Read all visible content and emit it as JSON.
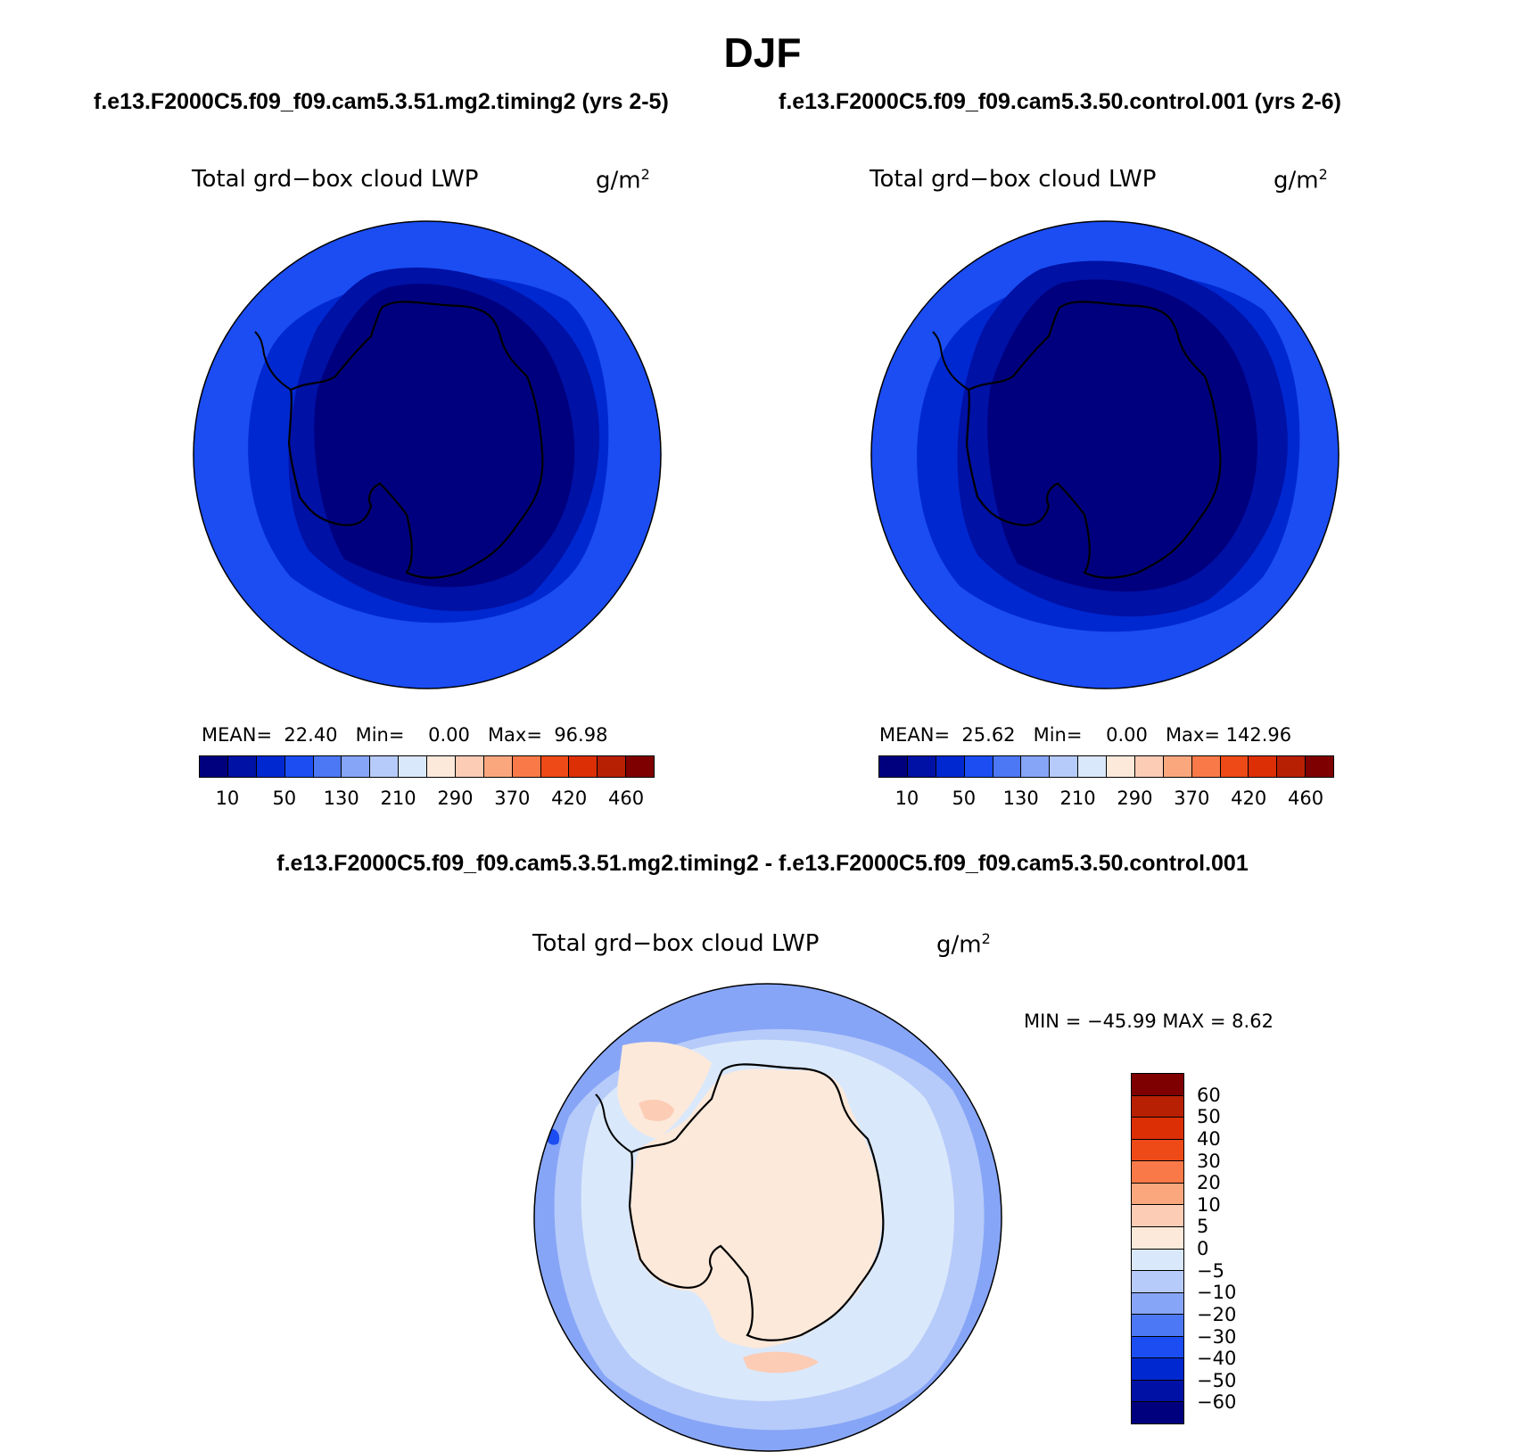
{
  "title": "DJF",
  "panels": {
    "left": {
      "case": "f.e13.F2000C5.f09_f09.cam5.3.51.mg2.timing2 (yrs 2-5)",
      "variable": "Total grd−box cloud LWP",
      "units_base": "g/m",
      "units_exp": "2",
      "mean_label": "MEAN=",
      "mean_value": "22.40",
      "min_label": "Min=",
      "min_value": "0.00",
      "max_label": "Max=",
      "max_value": "96.98"
    },
    "right": {
      "case": "f.e13.F2000C5.f09_f09.cam5.3.50.control.001 (yrs 2-6)",
      "variable": "Total grd−box cloud LWP",
      "units_base": "g/m",
      "units_exp": "2",
      "mean_label": "MEAN=",
      "mean_value": "25.62",
      "min_label": "Min=",
      "min_value": "0.00",
      "max_label": "Max=",
      "max_value": "142.96"
    },
    "diff": {
      "case": "f.e13.F2000C5.f09_f09.cam5.3.51.mg2.timing2 - f.e13.F2000C5.f09_f09.cam5.3.50.control.001",
      "variable": "Total grd−box cloud LWP",
      "units_base": "g/m",
      "units_exp": "2",
      "minmax": "MIN = −45.99 MAX =    8.62"
    }
  },
  "colorbar_abs": {
    "colors": [
      "#00007f",
      "#0011a5",
      "#0028d1",
      "#1b4df2",
      "#4d78f5",
      "#87a5f7",
      "#b6cbf9",
      "#dae8fb",
      "#fce9da",
      "#fcccb5",
      "#fba77e",
      "#f97a48",
      "#ee4a17",
      "#dc2f06",
      "#b82004",
      "#7f0000"
    ],
    "ticks": [
      "10",
      "50",
      "130",
      "210",
      "290",
      "370",
      "420",
      "460"
    ]
  },
  "colorbar_diff": {
    "colors": [
      "#7f0000",
      "#b82004",
      "#dc2f06",
      "#ee4a17",
      "#f97a48",
      "#fba77e",
      "#fcccb5",
      "#fce9da",
      "#dae8fb",
      "#b6cbf9",
      "#87a5f7",
      "#4d78f5",
      "#1b4df2",
      "#0028d1",
      "#0011a5",
      "#00007f"
    ],
    "ticks": [
      "60",
      "50",
      "40",
      "30",
      "20",
      "10",
      "5",
      "0",
      "−5",
      "−10",
      "−20",
      "−30",
      "−40",
      "−50",
      "−60"
    ]
  },
  "map_colors": {
    "ring1": "#1b4df2",
    "ring2": "#0028d1",
    "ring3": "#0011a5",
    "ring4": "#00007f",
    "diff_outer": "#87a5f7",
    "diff_mid": "#b6cbf9",
    "diff_inner": "#dae8fb",
    "diff_pos": "#fce9da",
    "diff_pos2": "#fcccb5",
    "diff_neg": "#1b4df2"
  }
}
